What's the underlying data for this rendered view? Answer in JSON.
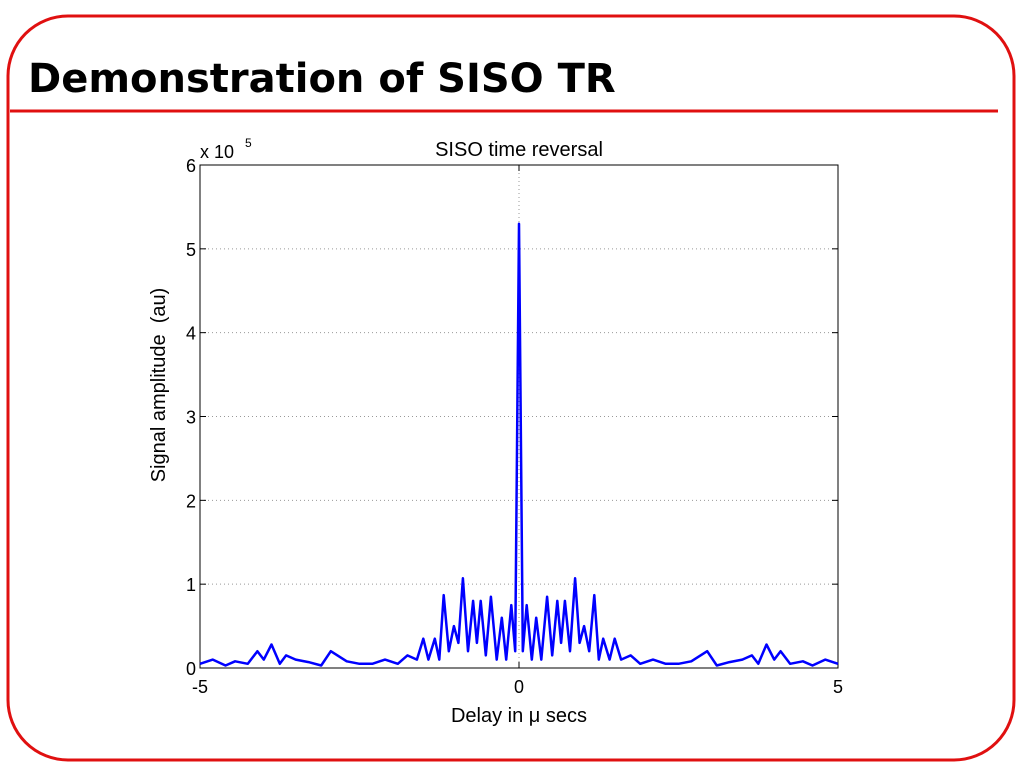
{
  "slide": {
    "title": "Demonstration of SISO TR"
  },
  "chart_data": {
    "type": "line",
    "title": "SISO time reversal",
    "x_label": "Delay in μ secs",
    "y_label": "Signal amplitude  (au)",
    "y_multiplier": {
      "text": "x 10",
      "exponent": 5
    },
    "xlim": [
      -5,
      5
    ],
    "xticks": [
      -5,
      0,
      5
    ],
    "ylim": [
      0,
      6
    ],
    "yticks": [
      0,
      1,
      2,
      3,
      4,
      5,
      6
    ],
    "grid": true,
    "x": [
      -5.0,
      -4.8,
      -4.6,
      -4.45,
      -4.25,
      -4.1,
      -4.0,
      -3.88,
      -3.75,
      -3.65,
      -3.5,
      -3.3,
      -3.1,
      -2.95,
      -2.7,
      -2.5,
      -2.3,
      -2.1,
      -1.9,
      -1.75,
      -1.6,
      -1.5,
      -1.42,
      -1.32,
      -1.25,
      -1.18,
      -1.1,
      -1.02,
      -0.95,
      -0.88,
      -0.8,
      -0.72,
      -0.66,
      -0.6,
      -0.52,
      -0.44,
      -0.35,
      -0.27,
      -0.2,
      -0.12,
      -0.06,
      0,
      0.06,
      0.12,
      0.2,
      0.27,
      0.35,
      0.44,
      0.52,
      0.6,
      0.66,
      0.72,
      0.8,
      0.88,
      0.95,
      1.02,
      1.1,
      1.18,
      1.25,
      1.32,
      1.42,
      1.5,
      1.6,
      1.75,
      1.9,
      2.1,
      2.3,
      2.5,
      2.7,
      2.95,
      3.1,
      3.3,
      3.5,
      3.65,
      3.75,
      3.88,
      4.0,
      4.1,
      4.25,
      4.45,
      4.6,
      4.8,
      5.0
    ],
    "series": [
      {
        "color": "#0000ff",
        "values": [
          0.05,
          0.1,
          0.03,
          0.08,
          0.05,
          0.2,
          0.1,
          0.28,
          0.05,
          0.15,
          0.1,
          0.07,
          0.03,
          0.2,
          0.08,
          0.05,
          0.05,
          0.1,
          0.05,
          0.15,
          0.1,
          0.35,
          0.1,
          0.35,
          0.1,
          0.87,
          0.2,
          0.5,
          0.3,
          1.07,
          0.2,
          0.8,
          0.3,
          0.8,
          0.15,
          0.85,
          0.1,
          0.6,
          0.1,
          0.75,
          0.2,
          5.3,
          0.2,
          0.75,
          0.1,
          0.6,
          0.1,
          0.85,
          0.15,
          0.8,
          0.3,
          0.8,
          0.2,
          1.07,
          0.3,
          0.5,
          0.2,
          0.87,
          0.1,
          0.35,
          0.1,
          0.35,
          0.1,
          0.15,
          0.05,
          0.1,
          0.05,
          0.05,
          0.08,
          0.2,
          0.03,
          0.07,
          0.1,
          0.15,
          0.05,
          0.28,
          0.1,
          0.2,
          0.05,
          0.08,
          0.03,
          0.1,
          0.05
        ]
      }
    ]
  }
}
